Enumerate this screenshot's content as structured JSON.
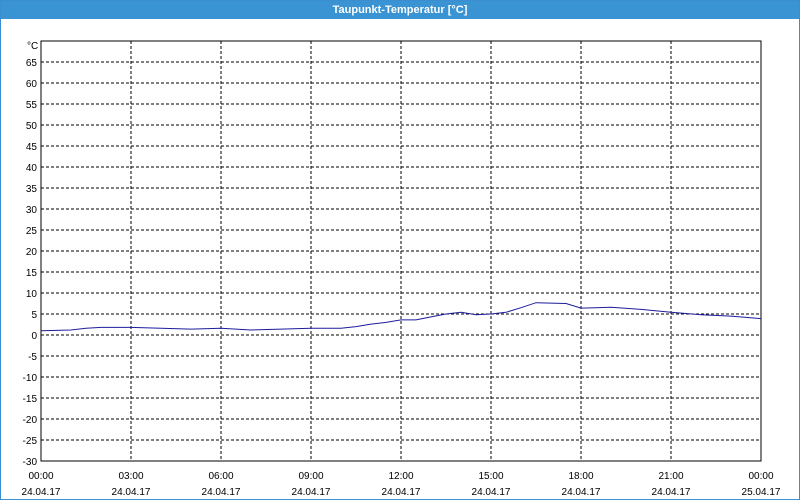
{
  "window": {
    "title": "Taupunkt-Temperatur [°C]"
  },
  "colors": {
    "title_bar": "#3a93d3",
    "series": "#1c1c9c",
    "grid": "#000000",
    "frame": "#3b8fd0"
  },
  "chart_data": {
    "type": "line",
    "title": "Taupunkt-Temperatur [°C]",
    "ylabel": "°C",
    "ylim": [
      -30,
      70
    ],
    "y_ticks": [
      "65",
      "60",
      "55",
      "50",
      "45",
      "40",
      "35",
      "30",
      "25",
      "20",
      "15",
      "10",
      "5",
      "0",
      "-5",
      "-10",
      "-15",
      "-20",
      "-25",
      "-30"
    ],
    "y_tick_values": [
      65,
      60,
      55,
      50,
      45,
      40,
      35,
      30,
      25,
      20,
      15,
      10,
      5,
      0,
      -5,
      -10,
      -15,
      -20,
      -25,
      -30
    ],
    "x_range_hours": [
      0,
      24
    ],
    "x_ticks": [
      {
        "hour": 0,
        "time": "00:00",
        "date": "24.04.17"
      },
      {
        "hour": 3,
        "time": "03:00",
        "date": "24.04.17"
      },
      {
        "hour": 6,
        "time": "06:00",
        "date": "24.04.17"
      },
      {
        "hour": 9,
        "time": "09:00",
        "date": "24.04.17"
      },
      {
        "hour": 12,
        "time": "12:00",
        "date": "24.04.17"
      },
      {
        "hour": 15,
        "time": "15:00",
        "date": "24.04.17"
      },
      {
        "hour": 18,
        "time": "18:00",
        "date": "24.04.17"
      },
      {
        "hour": 21,
        "time": "21:00",
        "date": "24.04.17"
      },
      {
        "hour": 24,
        "time": "00:00",
        "date": "25.04.17"
      }
    ],
    "grid": true,
    "series": [
      {
        "hours": [
          0,
          1,
          1.5,
          2,
          3,
          4,
          5,
          6,
          7,
          8,
          9,
          10,
          10.5,
          11,
          11.5,
          12,
          12.5,
          13,
          13.5,
          14,
          14.5,
          15,
          15.5,
          16,
          16.5,
          17,
          17.5,
          18,
          18.5,
          19,
          20,
          21,
          22,
          23,
          24
        ],
        "values": [
          1,
          1.2,
          1.6,
          1.8,
          1.8,
          1.6,
          1.4,
          1.6,
          1.2,
          1.4,
          1.6,
          1.6,
          2.0,
          2.6,
          3.0,
          3.6,
          3.6,
          4.3,
          5.0,
          5.4,
          4.8,
          5.0,
          5.4,
          6.5,
          7.7,
          7.6,
          7.5,
          6.4,
          6.5,
          6.6,
          6.1,
          5.4,
          4.8,
          4.5,
          3.9
        ]
      }
    ]
  }
}
